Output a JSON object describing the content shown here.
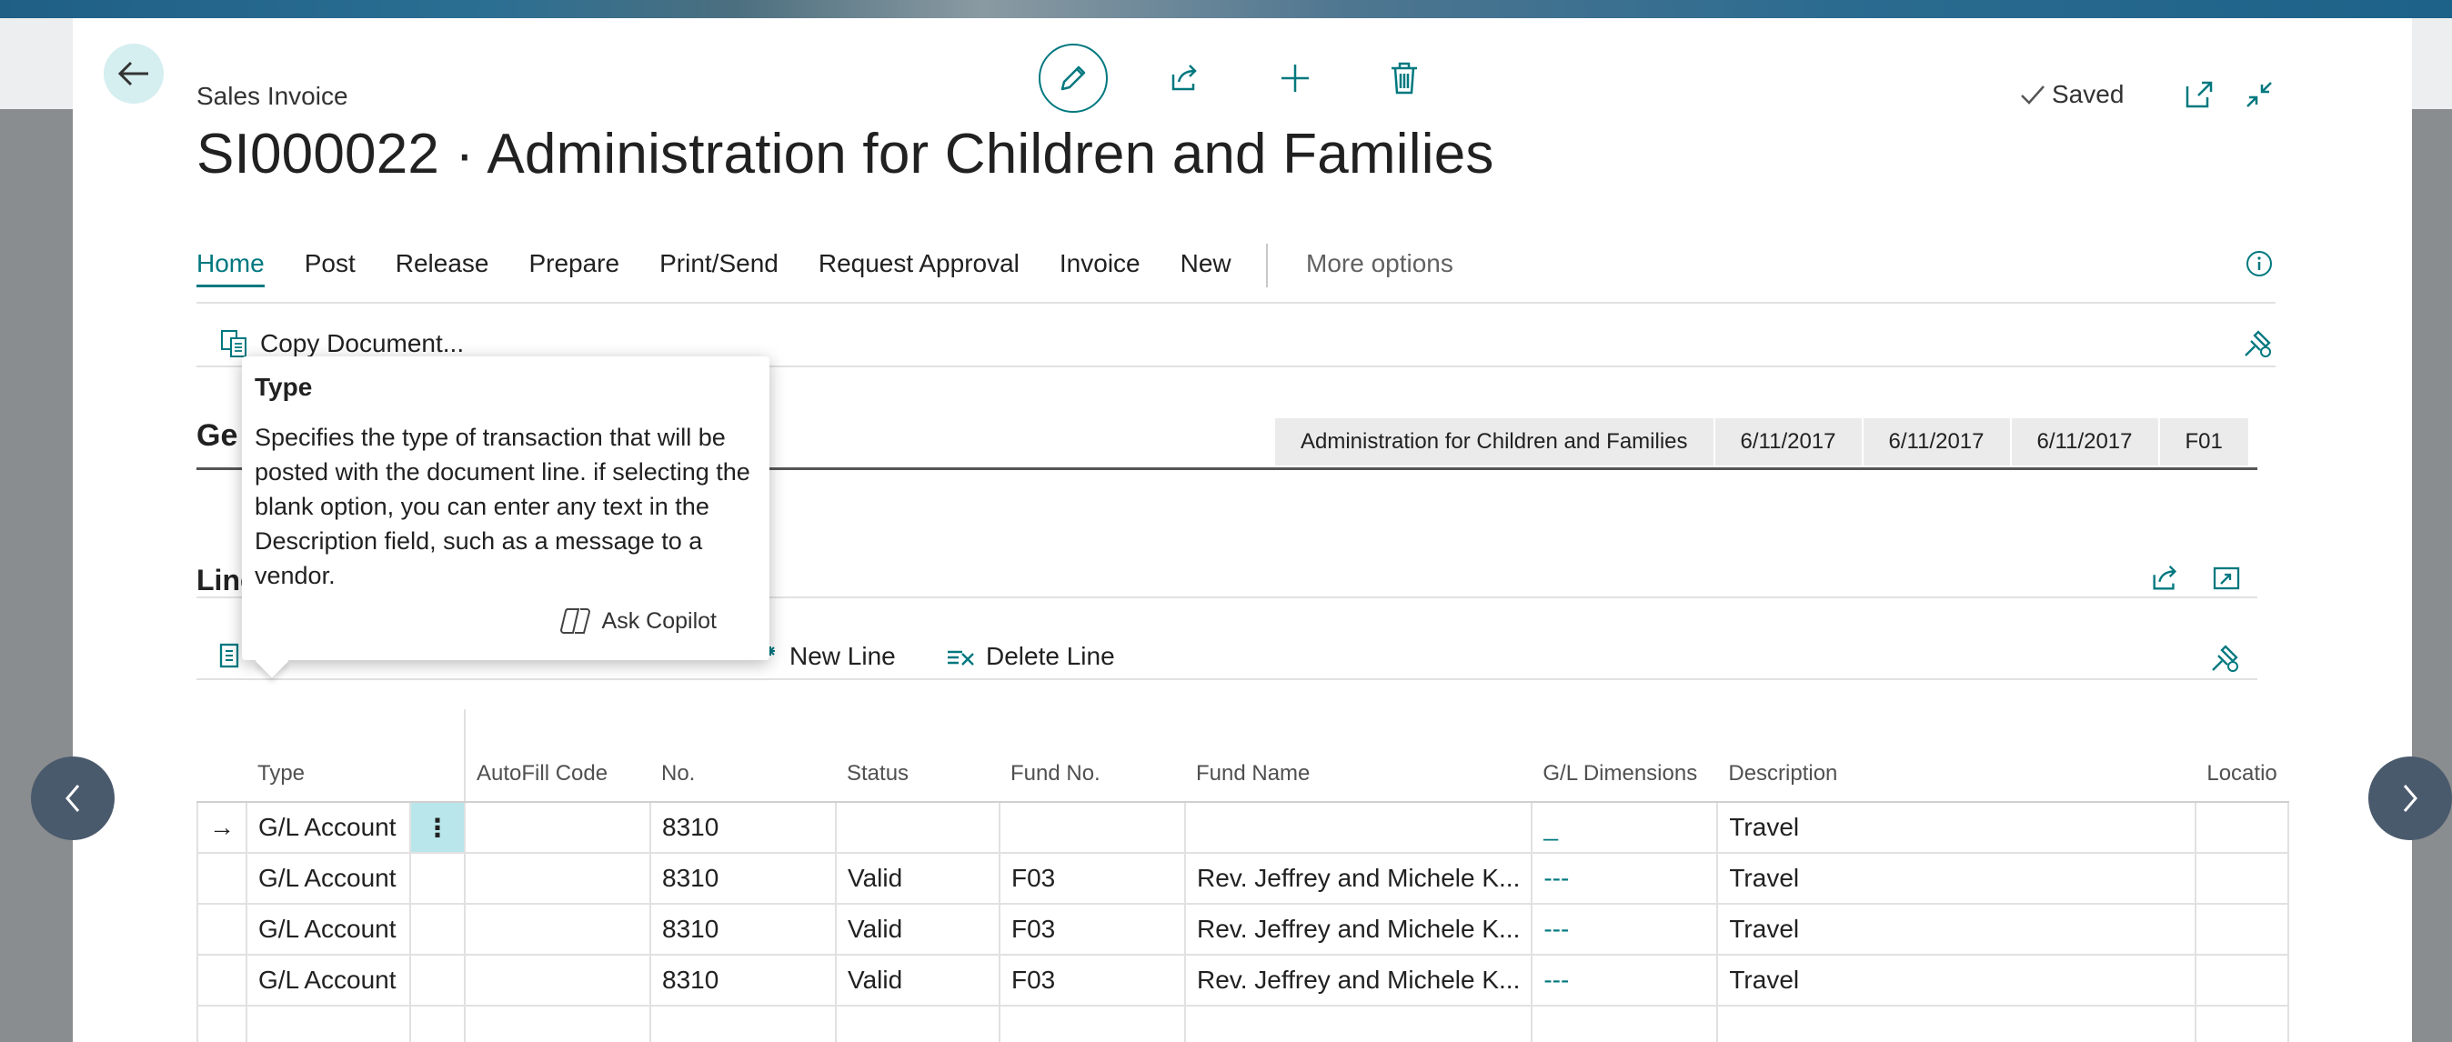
{
  "header": {
    "doc_type": "Sales Invoice",
    "title": "SI000022 · Administration for Children and Families",
    "saved_label": "Saved",
    "icons": [
      "back-icon",
      "edit-icon",
      "share-icon",
      "add-icon",
      "delete-icon",
      "checkmark-icon",
      "open-new-window-icon",
      "collapse-icon"
    ]
  },
  "menu": {
    "items": [
      "Home",
      "Post",
      "Release",
      "Prepare",
      "Print/Send",
      "Request Approval",
      "Invoice",
      "New"
    ],
    "more": "More options"
  },
  "actions": {
    "copy_document": "Copy Document..."
  },
  "general": {
    "heading": "Ge",
    "summary": [
      "Administration for Children and Families",
      "6/11/2017",
      "6/11/2017",
      "6/11/2017",
      "F01"
    ]
  },
  "lines": {
    "heading": "Line",
    "new_line": "New Line",
    "delete_line": "Delete Line",
    "columns": [
      "Type",
      "AutoFill Code",
      "No.",
      "Status",
      "Fund No.",
      "Fund Name",
      "G/L Dimensions",
      "Description",
      "Locatio"
    ],
    "rows": [
      {
        "type": "G/L Account",
        "autofill": "",
        "no": "8310",
        "status": "",
        "fund_no": "",
        "fund_name": "",
        "gl_dim": "_",
        "description": "Travel",
        "location": ""
      },
      {
        "type": "G/L Account",
        "autofill": "",
        "no": "8310",
        "status": "Valid",
        "fund_no": "F03",
        "fund_name": "Rev. Jeffrey and Michele K...",
        "gl_dim": "---",
        "description": "Travel",
        "location": ""
      },
      {
        "type": "G/L Account",
        "autofill": "",
        "no": "8310",
        "status": "Valid",
        "fund_no": "F03",
        "fund_name": "Rev. Jeffrey and Michele K...",
        "gl_dim": "---",
        "description": "Travel",
        "location": ""
      },
      {
        "type": "G/L Account",
        "autofill": "",
        "no": "8310",
        "status": "Valid",
        "fund_no": "F03",
        "fund_name": "Rev. Jeffrey and Michele K...",
        "gl_dim": "---",
        "description": "Travel",
        "location": ""
      },
      {
        "type": "",
        "autofill": "",
        "no": "",
        "status": "",
        "fund_no": "",
        "fund_name": "",
        "gl_dim": "",
        "description": "",
        "location": ""
      }
    ],
    "selected_row_marker": "→",
    "row_menu_glyph": "⋮"
  },
  "tooltip": {
    "title": "Type",
    "body": "Specifies the type of transaction that will be posted with the document line. if selecting the blank option, you can enter any text in the Description field, such as a message to a vendor.",
    "copilot": "Ask Copilot"
  },
  "colors": {
    "accent": "#00787f",
    "nav_circle": "#4a5a6d",
    "selected_cell": "#b9e6ea"
  }
}
